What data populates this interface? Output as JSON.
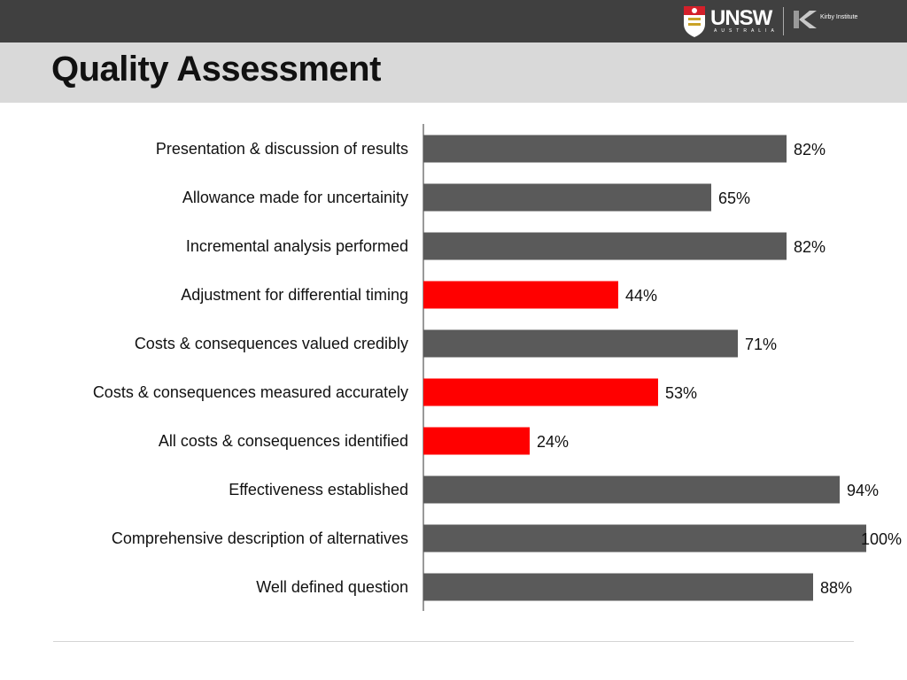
{
  "header": {
    "title": "Quality Assessment",
    "logo_unsw_text": "UNSW",
    "logo_unsw_sub": "AUSTRALIA",
    "logo_kirby_text": "Kirby Institute"
  },
  "colors": {
    "bar_default": "#5a5a5a",
    "bar_highlight": "#ff0000",
    "topbar": "#404040",
    "title_band": "#d9d9d9"
  },
  "chart_data": {
    "type": "bar",
    "orientation": "horizontal",
    "title": "Quality Assessment",
    "xlabel": "",
    "ylabel": "",
    "xlim": [
      0,
      100
    ],
    "grid": false,
    "legend": "none",
    "categories": [
      "Presentation & discussion of results",
      "Allowance made for uncertainity",
      "Incremental analysis performed",
      "Adjustment for differential timing",
      "Costs & consequences valued credibly",
      "Costs & consequences measured accurately",
      "All costs & consequences identified",
      "Effectiveness established",
      "Comprehensive description of alternatives",
      "Well defined question"
    ],
    "values": [
      82,
      65,
      82,
      44,
      71,
      53,
      24,
      94,
      100,
      88
    ],
    "value_labels": [
      "82%",
      "65%",
      "82%",
      "44%",
      "71%",
      "53%",
      "24%",
      "94%",
      "100%",
      "88%"
    ],
    "highlighted": [
      false,
      false,
      false,
      true,
      false,
      true,
      true,
      false,
      false,
      false
    ]
  }
}
